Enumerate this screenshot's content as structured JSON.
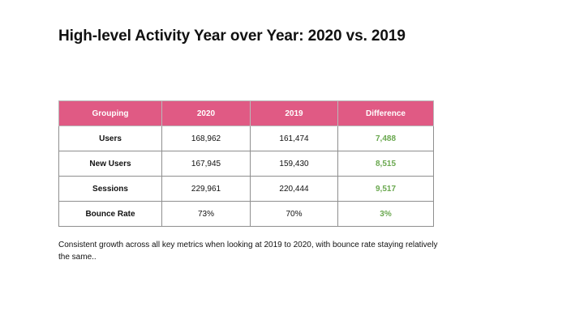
{
  "title": "High-level Activity Year over Year: 2020 vs. 2019",
  "table": {
    "headers": [
      "Grouping",
      "2020",
      "2019",
      "Difference"
    ],
    "rows": [
      {
        "grouping": "Users",
        "y2020": "168,962",
        "y2019": "161,474",
        "difference": "7,488"
      },
      {
        "grouping": "New Users",
        "y2020": "167,945",
        "y2019": "159,430",
        "difference": "8,515"
      },
      {
        "grouping": "Sessions",
        "y2020": "229,961",
        "y2019": "220,444",
        "difference": "9,517"
      },
      {
        "grouping": "Bounce Rate",
        "y2020": "73%",
        "y2019": "70%",
        "difference": "3%"
      }
    ]
  },
  "caption": "Consistent growth across all key metrics when looking at 2019 to 2020, with bounce rate staying relatively the same..",
  "colors": {
    "header_bg": "#e05a84",
    "header_text": "#ffffff",
    "difference_text": "#6aa84f"
  }
}
